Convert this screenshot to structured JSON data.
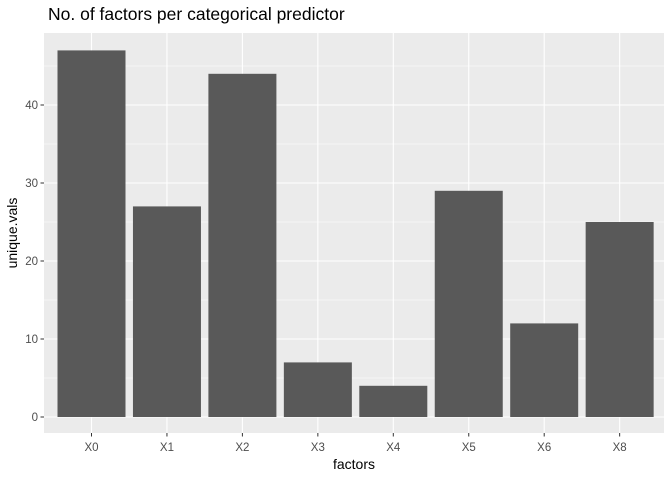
{
  "chart_data": {
    "type": "bar",
    "title": "No. of factors per categorical predictor",
    "xlabel": "factors",
    "ylabel": "unique.vals",
    "categories": [
      "X0",
      "X1",
      "X2",
      "X3",
      "X4",
      "X5",
      "X6",
      "X8"
    ],
    "values": [
      47,
      27,
      44,
      7,
      4,
      29,
      12,
      25
    ],
    "ylim": [
      0,
      49.35
    ],
    "yticks": [
      0,
      10,
      20,
      30,
      40
    ],
    "ytick_labels": [
      "0",
      "10",
      "20",
      "30",
      "40"
    ],
    "grid": true,
    "legend": "none",
    "colors": {
      "panel_background": "#ebebeb",
      "grid_major": "#ffffff",
      "bar_fill": "#595959",
      "tick_text": "#4d4d4d",
      "text": "#000000"
    }
  }
}
